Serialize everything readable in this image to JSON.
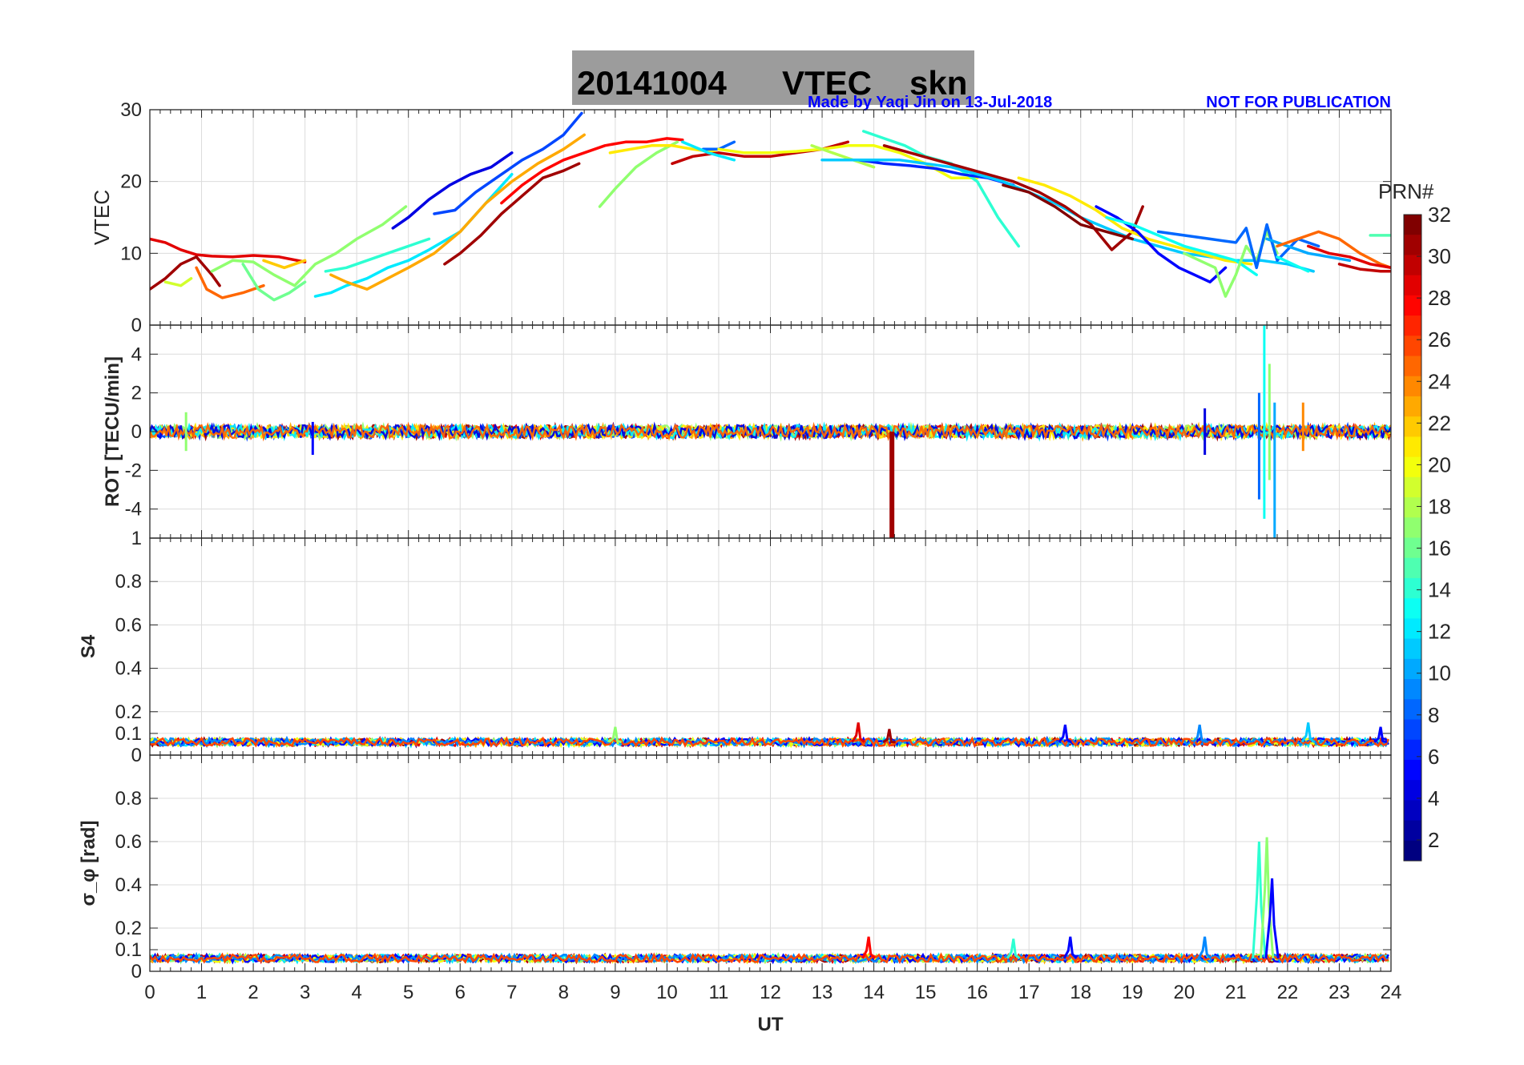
{
  "header": {
    "date": "20141004",
    "product": "VTEC",
    "station": "skn",
    "credit": "Made by Yaqi Jin on 13-Jul-2018",
    "notice": "NOT FOR PUBLICATION"
  },
  "colorbar": {
    "label": "PRN#",
    "ticks": [
      "32",
      "30",
      "28",
      "26",
      "24",
      "22",
      "20",
      "18",
      "16",
      "14",
      "12",
      "10",
      "8",
      "6",
      "4",
      "2"
    ],
    "range": [
      1,
      32
    ]
  },
  "chart_data": [
    {
      "type": "line",
      "title": "20141004    VTEC  skn",
      "ylabel": "VTEC",
      "xlabel": "",
      "xlim": [
        0,
        24
      ],
      "ylim": [
        0,
        30
      ],
      "yticks": [
        "0",
        "10",
        "20",
        "30"
      ],
      "series": [
        {
          "name": "PRN 29",
          "prn": 29,
          "x": [
            0,
            0.3,
            0.6,
            0.9,
            1.2,
            1.6,
            2.0,
            2.5,
            3.0
          ],
          "values": [
            12,
            11.5,
            10.5,
            9.8,
            9.6,
            9.5,
            9.7,
            9.5,
            8.8
          ]
        },
        {
          "name": "PRN 31",
          "prn": 31,
          "x": [
            0,
            0.3,
            0.6,
            0.9,
            1.2,
            1.35
          ],
          "values": [
            5,
            6.5,
            8.5,
            9.5,
            7,
            5.5
          ]
        },
        {
          "name": "PRN 25",
          "prn": 25,
          "x": [
            0.9,
            1.1,
            1.4,
            1.8,
            2.2
          ],
          "values": [
            8,
            5,
            3.8,
            4.5,
            5.5
          ]
        },
        {
          "name": "PRN 19",
          "prn": 19,
          "x": [
            0.3,
            0.6,
            0.8
          ],
          "values": [
            6,
            5.5,
            6.5
          ]
        },
        {
          "name": "PRN 17",
          "prn": 17,
          "x": [
            1.2,
            1.6,
            2.0,
            2.4,
            2.8,
            3.2,
            3.6,
            4.0,
            4.5,
            4.95
          ],
          "values": [
            7.5,
            9,
            8.8,
            7,
            5.5,
            8.5,
            10,
            12,
            14,
            16.5
          ]
        },
        {
          "name": "PRN 16",
          "prn": 16,
          "x": [
            1.8,
            2.1,
            2.4,
            2.7,
            3.0
          ],
          "values": [
            8.5,
            5,
            3.5,
            4.5,
            6
          ]
        },
        {
          "name": "PRN 22",
          "prn": 22,
          "x": [
            2.2,
            2.6,
            3.0
          ],
          "values": [
            9,
            8,
            9
          ]
        },
        {
          "name": "PRN 12",
          "prn": 12,
          "x": [
            3.2,
            3.5,
            3.8,
            4.2,
            4.6,
            5.0,
            5.4,
            6.0,
            6.5,
            7.0
          ],
          "values": [
            4,
            4.5,
            5.5,
            6.5,
            8,
            9,
            10.5,
            13,
            17,
            21
          ]
        },
        {
          "name": "PRN 14",
          "prn": 14,
          "x": [
            3.4,
            3.8,
            4.2,
            4.6,
            5.0,
            5.4
          ],
          "values": [
            7.5,
            8,
            9,
            10,
            11,
            12
          ]
        },
        {
          "name": "PRN 23",
          "prn": 23,
          "x": [
            3.5,
            3.8,
            4.2,
            4.6,
            5.0,
            5.5,
            6.0,
            6.5,
            7.0,
            7.5,
            8.0,
            8.4
          ],
          "values": [
            7,
            6,
            5,
            6.5,
            8,
            10,
            13,
            17,
            20,
            22.5,
            24.5,
            26.5
          ]
        },
        {
          "name": "PRN 4",
          "prn": 4,
          "x": [
            4.7,
            5.0,
            5.4,
            5.8,
            6.2,
            6.6,
            7.0
          ],
          "values": [
            13.5,
            15,
            17.5,
            19.5,
            21,
            22,
            24
          ]
        },
        {
          "name": "PRN 7",
          "prn": 7,
          "x": [
            5.5,
            5.9,
            6.3,
            6.8,
            7.2,
            7.6,
            8.0,
            8.35
          ],
          "values": [
            15.5,
            16,
            18.5,
            21,
            23,
            24.5,
            26.5,
            29.5
          ]
        },
        {
          "name": "PRN 31",
          "prn": 31,
          "x": [
            5.7,
            6.0,
            6.4,
            6.8,
            7.2,
            7.6,
            8.0,
            8.3
          ],
          "values": [
            8.5,
            10,
            12.5,
            15.5,
            18,
            20.5,
            21.5,
            22.5
          ]
        },
        {
          "name": "PRN 28",
          "prn": 28,
          "x": [
            6.8,
            7.2,
            7.6,
            8.0,
            8.4,
            8.8,
            9.2,
            9.6,
            10.0,
            10.3
          ],
          "values": [
            17,
            19.5,
            21.5,
            23,
            24,
            25,
            25.5,
            25.5,
            26,
            25.8
          ]
        },
        {
          "name": "PRN 17",
          "prn": 17,
          "x": [
            8.7,
            9.0,
            9.4,
            9.8,
            10.2
          ],
          "values": [
            16.5,
            19,
            22,
            24,
            25.5
          ]
        },
        {
          "name": "PRN 21",
          "prn": 21,
          "x": [
            8.9,
            9.3,
            9.7,
            10.1,
            10.5,
            11.0
          ],
          "values": [
            24,
            24.5,
            25,
            25,
            24.5,
            24
          ]
        },
        {
          "name": "PRN 30",
          "prn": 30,
          "x": [
            10.1,
            10.5,
            11.0,
            11.5,
            12.0,
            12.5,
            13.0,
            13.5
          ],
          "values": [
            22.5,
            23.5,
            24,
            23.5,
            23.5,
            24,
            24.5,
            25.5
          ]
        },
        {
          "name": "PRN 8",
          "prn": 8,
          "x": [
            10.7,
            11.0,
            11.3
          ],
          "values": [
            24.5,
            24.5,
            25.5
          ]
        },
        {
          "name": "PRN 12",
          "prn": 12,
          "x": [
            10.3,
            10.8,
            11.3
          ],
          "values": [
            25.5,
            24,
            23
          ]
        },
        {
          "name": "PRN 20",
          "prn": 20,
          "x": [
            11.0,
            11.5,
            12.0,
            12.5,
            13.0,
            13.5,
            14.0,
            14.5,
            15.0,
            15.5,
            16.0
          ],
          "values": [
            24.5,
            24,
            24,
            24.2,
            24.5,
            25,
            25,
            24,
            22.5,
            20.5,
            20.5
          ]
        },
        {
          "name": "PRN 18",
          "prn": 18,
          "x": [
            12.8,
            13.2,
            13.6,
            14.0
          ],
          "values": [
            25,
            24,
            23,
            22
          ]
        },
        {
          "name": "PRN 14",
          "prn": 14,
          "x": [
            13.8,
            14.2,
            14.6,
            15.0,
            15.5,
            16.0,
            16.4,
            16.8
          ],
          "values": [
            27,
            26,
            25,
            23.5,
            22.5,
            20,
            15,
            11
          ]
        },
        {
          "name": "PRN 6",
          "prn": 6,
          "x": [
            13.7,
            14.2,
            14.7,
            15.2,
            15.7,
            16.2,
            16.7
          ],
          "values": [
            23,
            22.5,
            22.2,
            21.8,
            21,
            20.5,
            19.5
          ]
        },
        {
          "name": "PRN 11",
          "prn": 11,
          "x": [
            13.0,
            13.5,
            14.0,
            14.5,
            15.0,
            15.5,
            16.0,
            16.5,
            17.0,
            17.5,
            18.0,
            18.5,
            19.0,
            19.5,
            20.0,
            20.5,
            21.0,
            21.5,
            22.0,
            22.5
          ],
          "values": [
            23,
            23,
            23,
            23,
            22.5,
            22,
            21,
            20,
            18.5,
            17,
            15,
            13.5,
            12,
            11,
            10,
            9.5,
            9,
            9,
            8.5,
            7.5
          ]
        },
        {
          "name": "PRN 31",
          "prn": 31,
          "x": [
            14.2,
            14.7,
            15.2,
            15.7,
            16.2,
            16.7,
            17.2,
            17.7,
            18.2,
            18.6,
            19.0,
            19.2
          ],
          "values": [
            25,
            24,
            23,
            22,
            21,
            20,
            18.5,
            16.5,
            14,
            10.5,
            13,
            16.5
          ]
        },
        {
          "name": "PRN 32",
          "prn": 32,
          "x": [
            16.5,
            17.0,
            17.5,
            18.0,
            18.5,
            19.0
          ],
          "values": [
            19.5,
            18.5,
            16.5,
            14,
            13,
            12
          ]
        },
        {
          "name": "PRN 21",
          "prn": 21,
          "x": [
            16.8,
            17.3,
            17.8,
            18.3,
            18.8,
            19.3,
            19.8,
            20.3,
            20.8,
            21.3
          ],
          "values": [
            20.5,
            19.5,
            18,
            16,
            13.5,
            12,
            11,
            10,
            9,
            8.5
          ]
        },
        {
          "name": "PRN 5",
          "prn": 5,
          "x": [
            18.3,
            18.7,
            19.1,
            19.5,
            19.9,
            20.2,
            20.5,
            20.8
          ],
          "values": [
            16.5,
            15,
            13,
            10,
            8,
            7,
            6,
            8
          ]
        },
        {
          "name": "PRN 13",
          "prn": 13,
          "x": [
            18.5,
            19.0,
            19.5,
            20.0,
            20.5,
            21.0,
            21.4
          ],
          "values": [
            15,
            14,
            12.5,
            11,
            10,
            9,
            7
          ]
        },
        {
          "name": "PRN 17",
          "prn": 17,
          "x": [
            20.0,
            20.3,
            20.6,
            20.8,
            21.0,
            21.2,
            21.4,
            21.6,
            21.8
          ],
          "values": [
            10,
            9,
            8,
            4,
            7,
            11,
            9,
            13,
            10
          ]
        },
        {
          "name": "PRN 8",
          "prn": 8,
          "x": [
            19.5,
            20.0,
            20.5,
            21.0,
            21.2,
            21.4,
            21.6,
            21.8,
            22.2,
            22.6
          ],
          "values": [
            13,
            12.5,
            12,
            11.5,
            13.5,
            8,
            14,
            9,
            12,
            11
          ]
        },
        {
          "name": "PRN 10",
          "prn": 10,
          "x": [
            21.6,
            22.0,
            22.4,
            22.8,
            23.2
          ],
          "values": [
            12,
            11,
            10,
            9.5,
            9
          ]
        },
        {
          "name": "PRN 13",
          "prn": 13,
          "x": [
            21.8,
            22.1,
            22.4
          ],
          "values": [
            9.5,
            8.5,
            7.5
          ]
        },
        {
          "name": "PRN 25",
          "prn": 25,
          "x": [
            21.8,
            22.2,
            22.6,
            23.0,
            23.4,
            23.8,
            24.0
          ],
          "values": [
            11,
            12,
            13,
            12,
            10,
            8.5,
            8
          ]
        },
        {
          "name": "PRN 29",
          "prn": 29,
          "x": [
            22.4,
            22.8,
            23.2,
            23.6,
            24.0
          ],
          "values": [
            11,
            10,
            9.5,
            8.5,
            8
          ]
        },
        {
          "name": "PRN 30",
          "prn": 30,
          "x": [
            23.0,
            23.4,
            23.8,
            24.0
          ],
          "values": [
            8.5,
            7.8,
            7.5,
            7.5
          ]
        },
        {
          "name": "PRN 15",
          "prn": 15,
          "x": [
            23.6,
            23.8,
            24.0
          ],
          "values": [
            12.5,
            12.5,
            12.5
          ]
        }
      ]
    },
    {
      "type": "line",
      "ylabel": "ROT [TECU/min]",
      "xlim": [
        0,
        24
      ],
      "ylim": [
        -5.5,
        5.5
      ],
      "yticks": [
        "-4",
        "-2",
        "0",
        "2",
        "4"
      ],
      "baseline_noise": 0.15,
      "events": [
        {
          "prn": 31,
          "x": 14.35,
          "values": [
            0,
            -5.5
          ]
        },
        {
          "prn": 8,
          "x": 21.45,
          "values": [
            2.0,
            -3.5
          ]
        },
        {
          "prn": 13,
          "x": 21.55,
          "values": [
            5.5,
            -4.5
          ]
        },
        {
          "prn": 17,
          "x": 21.65,
          "values": [
            3.5,
            -2.5
          ]
        },
        {
          "prn": 10,
          "x": 21.75,
          "values": [
            1.5,
            -5.5
          ]
        },
        {
          "prn": 24,
          "x": 22.3,
          "values": [
            1.5,
            -1
          ]
        },
        {
          "prn": 4,
          "x": 20.4,
          "values": [
            1.2,
            -1.2
          ]
        },
        {
          "prn": 17,
          "x": 0.7,
          "values": [
            1.0,
            -1.0
          ]
        },
        {
          "prn": 5,
          "x": 3.15,
          "values": [
            0.5,
            -1.2
          ]
        }
      ]
    },
    {
      "type": "line",
      "ylabel": "S4",
      "xlim": [
        0,
        24
      ],
      "ylim": [
        0,
        1
      ],
      "yticks": [
        "0",
        "0.1",
        "0.2",
        "0.4",
        "0.6",
        "0.8",
        "1"
      ],
      "baseline_level": 0.06,
      "spikes": [
        {
          "prn": 17,
          "x": 9.0,
          "value": 0.13
        },
        {
          "prn": 29,
          "x": 13.7,
          "value": 0.15
        },
        {
          "prn": 31,
          "x": 14.3,
          "value": 0.12
        },
        {
          "prn": 5,
          "x": 17.7,
          "value": 0.14
        },
        {
          "prn": 9,
          "x": 20.3,
          "value": 0.14
        },
        {
          "prn": 11,
          "x": 22.4,
          "value": 0.15
        },
        {
          "prn": 5,
          "x": 23.8,
          "value": 0.13
        }
      ]
    },
    {
      "type": "line",
      "ylabel": "σ_φ [rad]",
      "xlabel": "UT",
      "xlim": [
        0,
        24
      ],
      "ylim": [
        0,
        1
      ],
      "xticks": [
        "0",
        "1",
        "2",
        "3",
        "4",
        "5",
        "6",
        "7",
        "8",
        "9",
        "10",
        "11",
        "12",
        "13",
        "14",
        "15",
        "16",
        "17",
        "18",
        "19",
        "20",
        "21",
        "22",
        "23",
        "24"
      ],
      "yticks": [
        "0",
        "0.1",
        "0.2",
        "0.4",
        "0.6",
        "0.8"
      ],
      "baseline_level": 0.06,
      "spikes": [
        {
          "prn": 14,
          "x": 21.45,
          "value": 0.6
        },
        {
          "prn": 17,
          "x": 21.6,
          "value": 0.62
        },
        {
          "prn": 5,
          "x": 21.7,
          "value": 0.43
        },
        {
          "prn": 9,
          "x": 20.4,
          "value": 0.16
        },
        {
          "prn": 28,
          "x": 13.9,
          "value": 0.16
        },
        {
          "prn": 5,
          "x": 17.8,
          "value": 0.16
        },
        {
          "prn": 14,
          "x": 16.7,
          "value": 0.15
        }
      ]
    }
  ],
  "colors": {
    "title_bg": "#9c9c9c",
    "credit": "#0000ff"
  }
}
